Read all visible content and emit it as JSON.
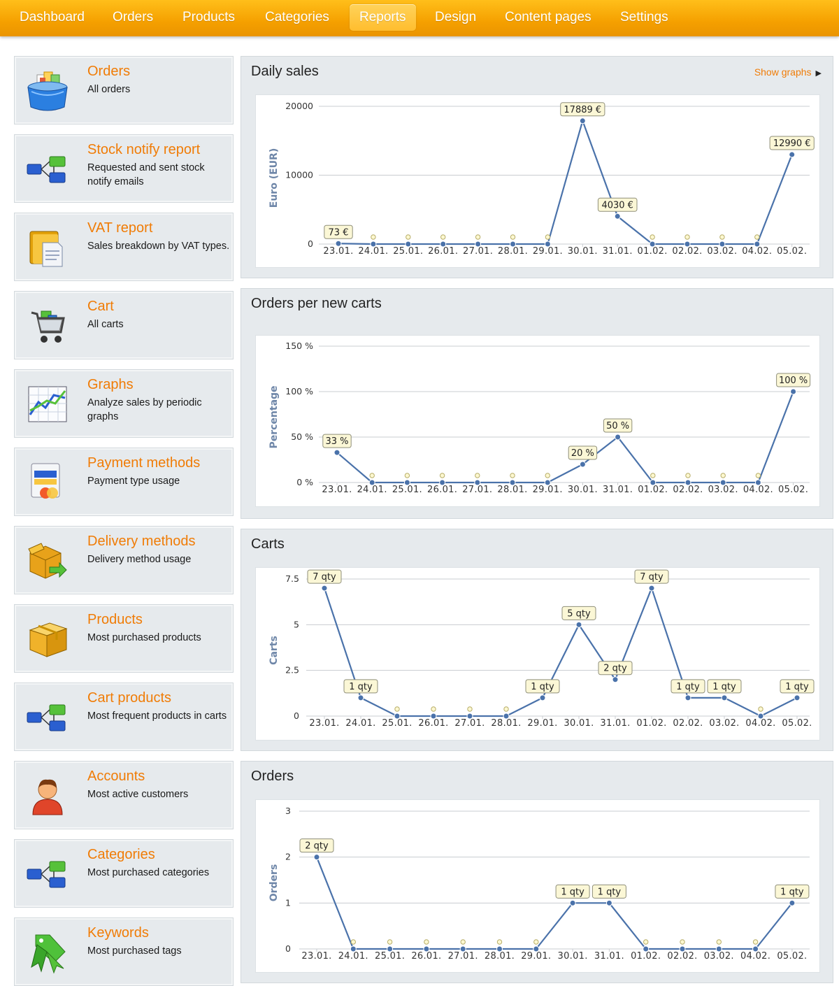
{
  "nav": {
    "tabs": [
      "Dashboard",
      "Orders",
      "Products",
      "Categories",
      "Reports",
      "Design",
      "Content pages",
      "Settings"
    ],
    "active_tab": "Reports"
  },
  "sidebar": {
    "items": [
      {
        "title": "Orders",
        "desc": "All orders",
        "icon": "orders-basket-icon"
      },
      {
        "title": "Stock notify report",
        "desc": "Requested and sent stock notify emails",
        "icon": "flowchart-icon"
      },
      {
        "title": "VAT report",
        "desc": "Sales breakdown by VAT types.",
        "icon": "vat-folder-icon"
      },
      {
        "title": "Cart",
        "desc": "All carts",
        "icon": "shopping-cart-icon"
      },
      {
        "title": "Graphs",
        "desc": "Analyze sales by periodic graphs",
        "icon": "line-graph-icon"
      },
      {
        "title": "Payment methods",
        "desc": "Payment type usage",
        "icon": "payment-card-icon"
      },
      {
        "title": "Delivery methods",
        "desc": "Delivery method usage",
        "icon": "delivery-box-icon"
      },
      {
        "title": "Products",
        "desc": "Most purchased products",
        "icon": "product-box-icon"
      },
      {
        "title": "Cart products",
        "desc": "Most frequent products in carts",
        "icon": "flowchart-icon"
      },
      {
        "title": "Accounts",
        "desc": "Most active customers",
        "icon": "user-avatar-icon"
      },
      {
        "title": "Categories",
        "desc": "Most purchased categories",
        "icon": "flowchart-icon"
      },
      {
        "title": "Keywords",
        "desc": "Most purchased tags",
        "icon": "tag-ribbon-icon"
      }
    ]
  },
  "panels": {
    "daily_sales": {
      "title": "Daily sales",
      "link": "Show graphs"
    },
    "orders_per_new_carts": {
      "title": "Orders per new carts"
    },
    "carts": {
      "title": "Carts"
    },
    "orders": {
      "title": "Orders"
    }
  },
  "colors": {
    "accent": "#f07c06",
    "nav": "#f5a000",
    "line": "#4a72aa",
    "label_bg": "#fbf7d6"
  },
  "chart_data": [
    {
      "type": "line",
      "title": "Daily sales",
      "ylabel": "Euro (EUR)",
      "ylim": [
        0,
        20000
      ],
      "yticks": [
        "0",
        "10000",
        "20000"
      ],
      "categories": [
        "23.01.",
        "24.01.",
        "25.01.",
        "26.01.",
        "27.01.",
        "28.01.",
        "29.01.",
        "30.01.",
        "31.01.",
        "01.02.",
        "02.02.",
        "03.02.",
        "04.02.",
        "05.02."
      ],
      "values": [
        73,
        0,
        0,
        0,
        0,
        0,
        0,
        17889,
        4030,
        0,
        0,
        0,
        0,
        12990
      ],
      "labels": [
        "73 €",
        "",
        "",
        "",
        "",
        "",
        "",
        "17889 €",
        "4030 €",
        "",
        "",
        "",
        "",
        "12990 €"
      ],
      "grid": true
    },
    {
      "type": "line",
      "title": "Orders per new carts",
      "ylabel": "Percentage",
      "ylim": [
        0,
        150
      ],
      "yticks": [
        "0 %",
        "50 %",
        "100 %",
        "150 %"
      ],
      "categories": [
        "23.01.",
        "24.01.",
        "25.01.",
        "26.01.",
        "27.01.",
        "28.01.",
        "29.01.",
        "30.01.",
        "31.01.",
        "01.02.",
        "02.02.",
        "03.02.",
        "04.02.",
        "05.02."
      ],
      "values": [
        33,
        0,
        0,
        0,
        0,
        0,
        0,
        20,
        50,
        0,
        0,
        0,
        0,
        100
      ],
      "labels": [
        "33 %",
        "",
        "",
        "",
        "",
        "",
        "",
        "20 %",
        "50 %",
        "",
        "",
        "",
        "",
        "100 %"
      ],
      "grid": true
    },
    {
      "type": "line",
      "title": "Carts",
      "ylabel": "Carts",
      "ylim": [
        0,
        7.5
      ],
      "yticks": [
        "0",
        "2.5",
        "5",
        "7.5"
      ],
      "categories": [
        "23.01.",
        "24.01.",
        "25.01.",
        "26.01.",
        "27.01.",
        "28.01.",
        "29.01.",
        "30.01.",
        "31.01.",
        "01.02.",
        "02.02.",
        "03.02.",
        "04.02.",
        "05.02."
      ],
      "values": [
        7,
        1,
        0,
        0,
        0,
        0,
        1,
        5,
        2,
        7,
        1,
        1,
        0,
        1
      ],
      "labels": [
        "7 qty",
        "1 qty",
        "",
        "",
        "",
        "",
        "1 qty",
        "5 qty",
        "2 qty",
        "7 qty",
        "1 qty",
        "1 qty",
        "",
        "1 qty"
      ],
      "grid": true
    },
    {
      "type": "line",
      "title": "Orders",
      "ylabel": "Orders",
      "ylim": [
        0,
        3
      ],
      "yticks": [
        "0",
        "1",
        "2",
        "3"
      ],
      "categories": [
        "23.01.",
        "24.01.",
        "25.01.",
        "26.01.",
        "27.01.",
        "28.01.",
        "29.01.",
        "30.01.",
        "31.01.",
        "01.02.",
        "02.02.",
        "03.02.",
        "04.02.",
        "05.02."
      ],
      "values": [
        2,
        0,
        0,
        0,
        0,
        0,
        0,
        1,
        1,
        0,
        0,
        0,
        0,
        1
      ],
      "labels": [
        "2 qty",
        "",
        "",
        "",
        "",
        "",
        "",
        "1 qty",
        "1 qty",
        "",
        "",
        "",
        "",
        "1 qty"
      ],
      "grid": true
    }
  ]
}
